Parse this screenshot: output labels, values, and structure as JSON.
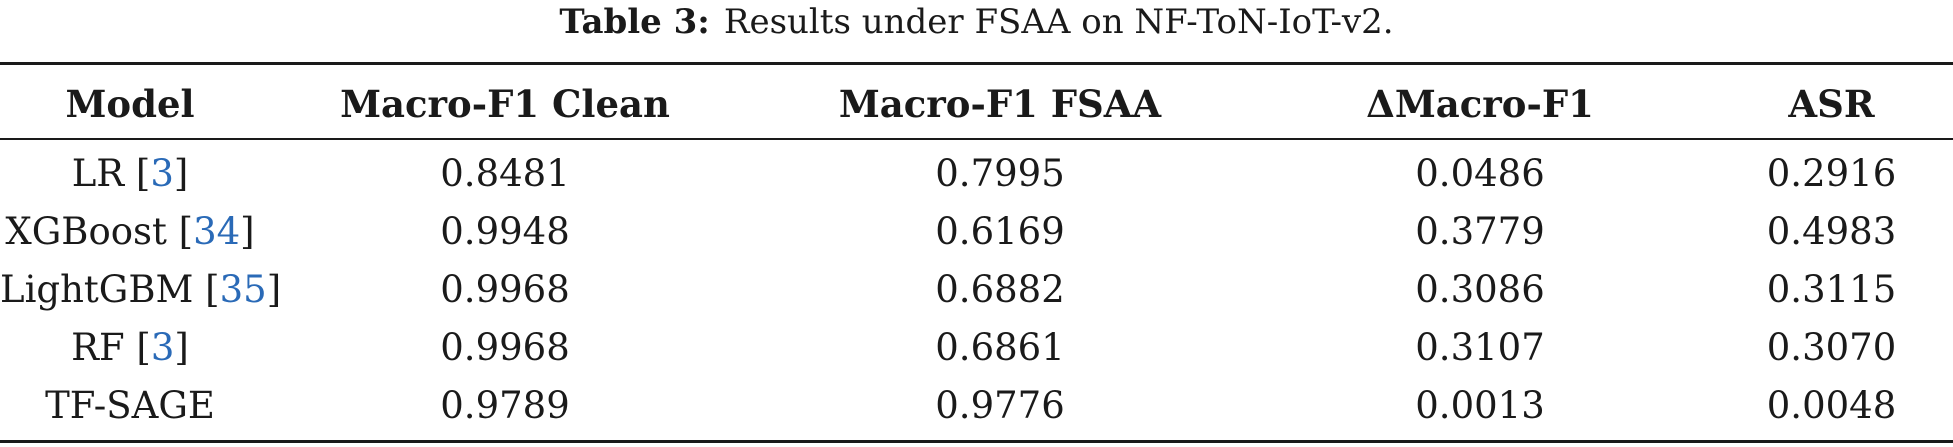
{
  "caption": {
    "label": "Table 3:",
    "text": "Results under FSAA on NF-ToN-IoT-v2."
  },
  "table": {
    "headers": [
      "Model",
      "Macro-F1 Clean",
      "Macro-F1 FSAA",
      "ΔMacro-F1",
      "ASR"
    ],
    "rows": [
      {
        "model": "LR",
        "ref": "3",
        "clean": "0.8481",
        "fsaa": "0.7995",
        "delta": "0.0486",
        "asr": "0.2916"
      },
      {
        "model": "XGBoost",
        "ref": "34",
        "clean": "0.9948",
        "fsaa": "0.6169",
        "delta": "0.3779",
        "asr": "0.4983"
      },
      {
        "model": "LightGBM",
        "ref": "35",
        "clean": "0.9968",
        "fsaa": "0.6882",
        "delta": "0.3086",
        "asr": "0.3115"
      },
      {
        "model": "RF",
        "ref": "3",
        "clean": "0.9968",
        "fsaa": "0.6861",
        "delta": "0.3107",
        "asr": "0.3070"
      },
      {
        "model": "TF-SAGE",
        "ref": "",
        "clean": "0.9789",
        "fsaa": "0.9776",
        "delta": "0.0013",
        "asr": "0.0048"
      }
    ]
  },
  "colors": {
    "text": "#1a1a1a",
    "citation_link": "#2a6ab7"
  }
}
